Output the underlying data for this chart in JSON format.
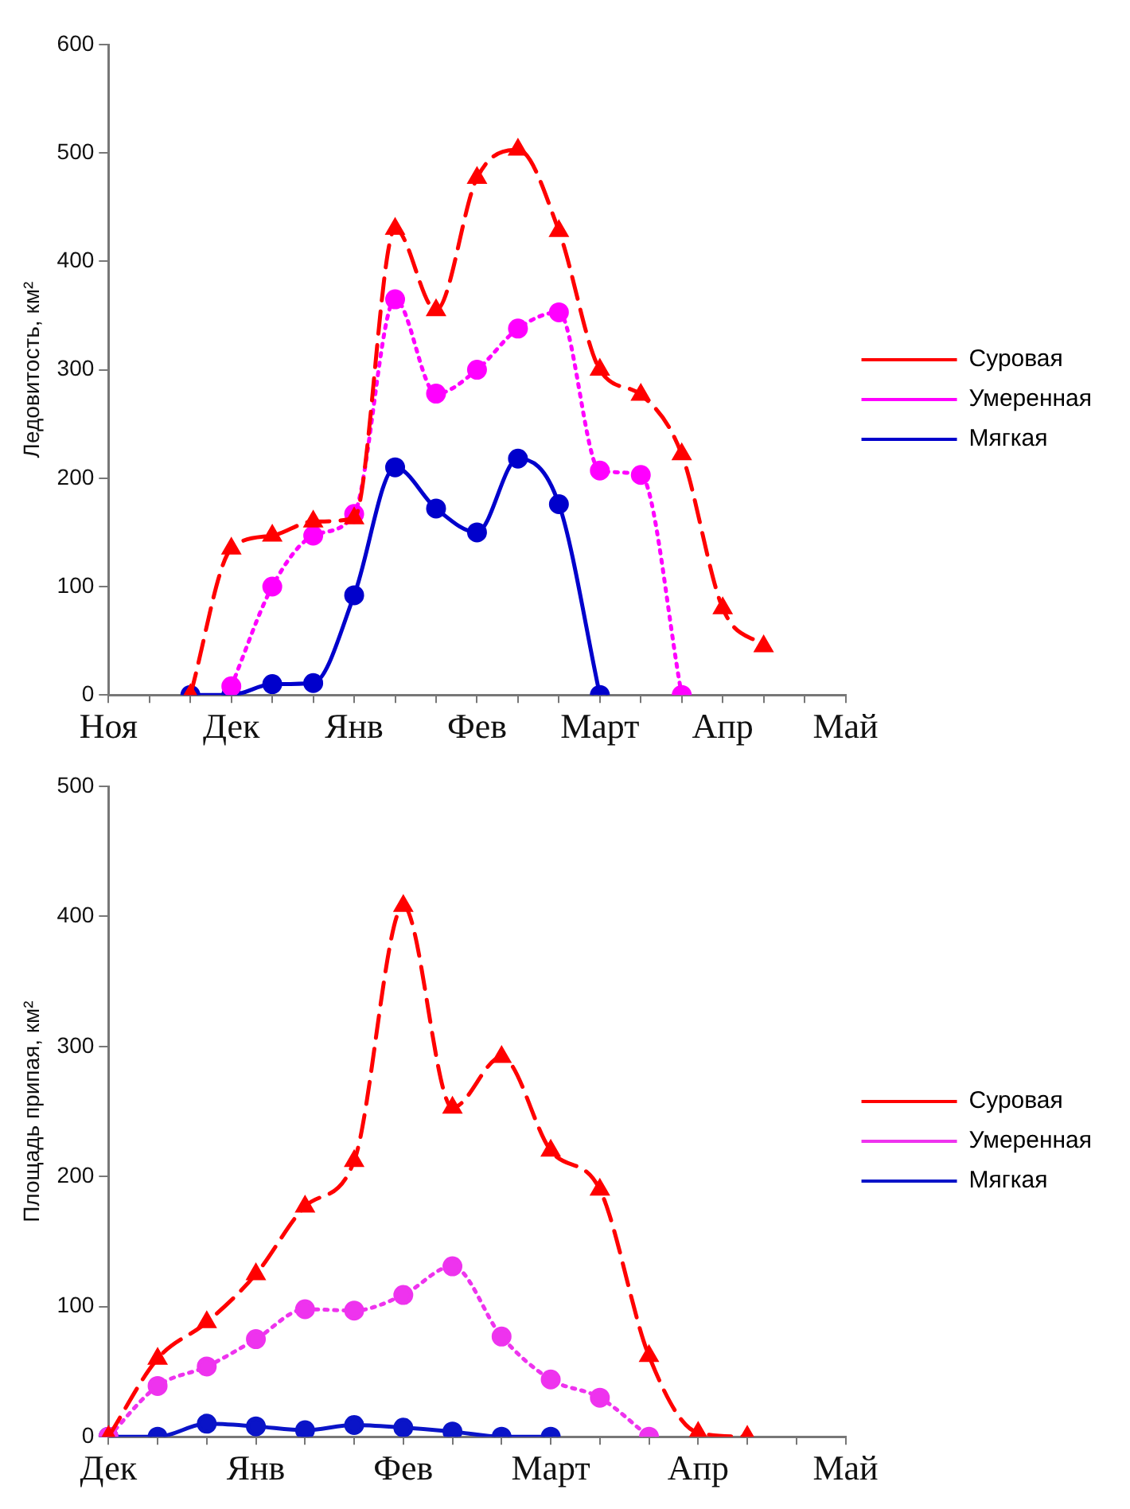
{
  "chart_data": [
    {
      "type": "line",
      "ylabel": "Ледовитость, км²",
      "categories": [
        "Ноя",
        null,
        null,
        "Дек",
        null,
        null,
        "Янв",
        null,
        null,
        "Фев",
        null,
        null,
        "Март",
        null,
        null,
        "Апр",
        null,
        null,
        "Май"
      ],
      "ylim": [
        0,
        600
      ],
      "yticks": [
        0,
        100,
        200,
        300,
        400,
        500,
        600
      ],
      "legend": "right",
      "series": [
        {
          "name": "Суровая",
          "color": "#ff0000",
          "marker": "triangle",
          "line_style": "dashed",
          "values": [
            null,
            null,
            0,
            135,
            147,
            160,
            163,
            430,
            355,
            477,
            503,
            428,
            300,
            277,
            222,
            80,
            45,
            null,
            null
          ]
        },
        {
          "name": "Умеренная",
          "color": "#ff00ff",
          "marker": "circle",
          "line_style": "dotted",
          "values": [
            null,
            null,
            null,
            8,
            100,
            147,
            167,
            365,
            278,
            300,
            338,
            353,
            207,
            203,
            0,
            null,
            null,
            null,
            null
          ]
        },
        {
          "name": "Мягкая",
          "color": "#0000cc",
          "marker": "circle",
          "line_style": "solid",
          "values": [
            null,
            null,
            0,
            0,
            10,
            11,
            92,
            210,
            172,
            150,
            218,
            176,
            0,
            null,
            null,
            null,
            null,
            null,
            null
          ]
        }
      ]
    },
    {
      "type": "line",
      "ylabel": "Площадь припая, км²",
      "categories": [
        "Дек",
        null,
        null,
        "Янв",
        null,
        null,
        "Фев",
        null,
        null,
        "Март",
        null,
        null,
        "Апр",
        null,
        null,
        "Май"
      ],
      "ylim": [
        0,
        500
      ],
      "yticks": [
        0,
        100,
        200,
        300,
        400,
        500
      ],
      "legend": "right",
      "series": [
        {
          "name": "Суровая",
          "color": "#ff0000",
          "marker": "triangle",
          "line_style": "dashed",
          "values": [
            0,
            60,
            88,
            125,
            177,
            212,
            408,
            253,
            292,
            220,
            190,
            62,
            3,
            0,
            null,
            null
          ]
        },
        {
          "name": "Умеренная",
          "color": "#ee33ee",
          "marker": "circle",
          "line_style": "dotted",
          "values": [
            0,
            39,
            54,
            75,
            98,
            97,
            109,
            131,
            77,
            44,
            30,
            0,
            null,
            null,
            null,
            null
          ]
        },
        {
          "name": "Мягкая",
          "color": "#0a14c8",
          "marker": "circle",
          "line_style": "solid",
          "values": [
            0,
            0,
            10,
            8,
            5,
            9,
            7,
            4,
            0,
            0,
            null,
            null,
            null,
            null,
            null,
            null
          ]
        }
      ]
    }
  ]
}
